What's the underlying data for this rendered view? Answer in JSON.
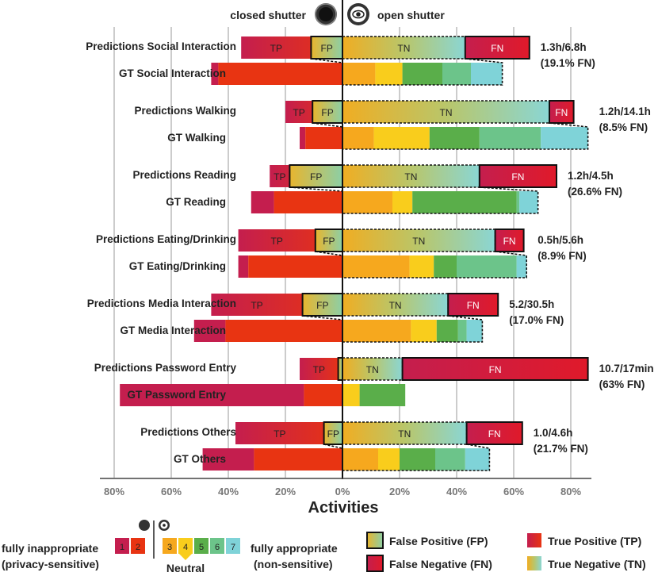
{
  "colors": {
    "level1": "#c41e4e",
    "level2": "#e83412",
    "level3": "#f6a81e",
    "level4": "#f9cd1c",
    "level5": "#5aae4a",
    "level6": "#6cc48a",
    "level7": "#7fd3d8",
    "tp_start": "#c41e4e",
    "tp_end": "#e83412",
    "fp_start": "#e8b52e",
    "fp_end": "#8ccfa6",
    "tn_start": "#f0ad22",
    "tn_end": "#8ad6d4",
    "fn": "#d4173a",
    "axis": "#444444",
    "grid": "#bbbbbb"
  },
  "header": {
    "closed_label": "closed shutter",
    "open_label": "open shutter",
    "closed_icon": "closed-shutter-icon",
    "open_icon": "open-shutter-icon"
  },
  "chart_data": {
    "type": "bar",
    "orientation": "horizontal-diverging",
    "xlabel": "Activities",
    "xlim": [
      -85,
      85
    ],
    "xticks": [
      -80,
      -60,
      -40,
      -20,
      0,
      20,
      40,
      60,
      80
    ],
    "xtick_labels": [
      "80%",
      "60%",
      "40%",
      "20%",
      "0%",
      "20%",
      "40%",
      "60%",
      "80%"
    ],
    "grid": true,
    "groups": [
      {
        "name": "Social Interaction",
        "pred_label": "Predictions Social Interaction",
        "gt_label": "GT Social Interaction",
        "pred": {
          "tp": 35.5,
          "fp": 11,
          "tn": 43,
          "fn": 22.5
        },
        "gt": [
          2.5,
          43.5,
          11.5,
          9.5,
          14,
          10,
          11
        ],
        "annotation": [
          "1.3h/6.8h",
          "(19.1% FN)"
        ]
      },
      {
        "name": "Walking",
        "pred_label": "Predictions Walking",
        "gt_label": "GT Walking",
        "pred": {
          "tp": 20,
          "fp": 10.5,
          "tn": 72.5,
          "fn": 8.5
        },
        "gt": [
          2,
          13,
          11,
          19.5,
          17.5,
          21.5,
          16.5
        ],
        "annotation": [
          "1.2h/14.1h",
          "(8.5% FN)"
        ]
      },
      {
        "name": "Reading",
        "pred_label": "Predictions Reading",
        "gt_label": "GT Reading",
        "pred": {
          "tp": 25.5,
          "fp": 18.5,
          "tn": 48,
          "fn": 27
        },
        "gt": [
          8,
          24,
          17.5,
          7,
          36.5,
          1,
          6.5
        ],
        "annotation": [
          "1.2h/4.5h",
          "(26.6% FN)"
        ]
      },
      {
        "name": "Eating/Drinking",
        "pred_label": "Predictions Eating/Drinking",
        "gt_label": "GT Eating/Drinking",
        "pred": {
          "tp": 36.5,
          "fp": 9.5,
          "tn": 53.5,
          "fn": 10
        },
        "gt": [
          3.5,
          33,
          23.5,
          8.5,
          8,
          21,
          3.5
        ],
        "annotation": [
          "0.5h/5.6h",
          "(8.9% FN)"
        ]
      },
      {
        "name": "Media Interaction",
        "pred_label": "Predictions Media Interaction",
        "gt_label": "GT Media Interaction",
        "pred": {
          "tp": 46,
          "fp": 14,
          "tn": 37,
          "fn": 17.5
        },
        "gt": [
          11,
          41,
          24,
          9,
          7.5,
          3,
          5.5
        ],
        "annotation": [
          "5.2/30.5h",
          "(17.0% FN)"
        ]
      },
      {
        "name": "Password Entry",
        "pred_label": "Predictions Password Entry",
        "gt_label": "GT Password Entry",
        "pred": {
          "tp": 15,
          "fp": 1.5,
          "tn": 21,
          "fn": 65
        },
        "gt": [
          64.5,
          13.5,
          0,
          6,
          16,
          0,
          0
        ],
        "annotation": [
          "10.7/17min",
          "(63% FN)"
        ]
      },
      {
        "name": "Others",
        "pred_label": "Predictions Others",
        "gt_label": "GT Others",
        "pred": {
          "tp": 37.5,
          "fp": 6.5,
          "tn": 43.5,
          "fn": 19.5
        },
        "gt": [
          18,
          31,
          12.5,
          7.5,
          12.5,
          10.5,
          8.5
        ],
        "annotation": [
          "1.0/4.6h",
          "(21.7% FN)"
        ]
      }
    ]
  },
  "legend": {
    "inappropriate_label": "fully inappropriate",
    "inappropriate_sub": "(privacy-sensitive)",
    "appropriate_label": "fully appropriate",
    "appropriate_sub": "(non-sensitive)",
    "neutral_label": "Neutral",
    "scale": [
      "1",
      "2",
      "3",
      "4",
      "5",
      "6",
      "7"
    ],
    "fp_label": "False Positive (FP)",
    "fn_label": "False Negative (FN)",
    "tp_label": "True Positive (TP)",
    "tn_label": "True Negative (TN)"
  },
  "segment_labels": {
    "tp": "TP",
    "fp": "FP",
    "tn": "TN",
    "fn": "FN"
  }
}
